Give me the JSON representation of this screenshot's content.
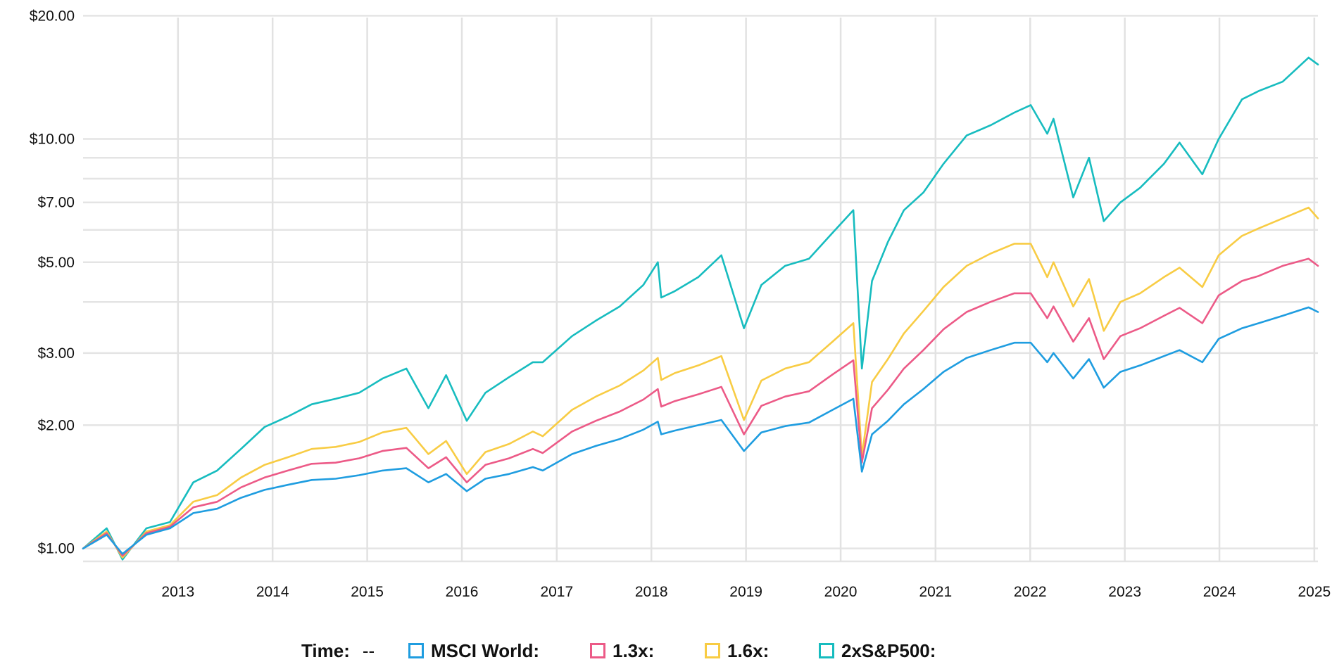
{
  "chart_data": {
    "type": "line",
    "title": "",
    "xlabel": "",
    "ylabel": "",
    "y_scale": "log",
    "ylim": [
      0.93,
      21.0
    ],
    "xlim": [
      "2012-01-01",
      "2025-01-15"
    ],
    "grid": true,
    "y_ticks": [
      {
        "value": 1,
        "label": "$1.00"
      },
      {
        "value": 2,
        "label": "$2.00"
      },
      {
        "value": 3,
        "label": "$3.00"
      },
      {
        "value": 5,
        "label": "$5.00"
      },
      {
        "value": 7,
        "label": "$7.00"
      },
      {
        "value": 10,
        "label": "$10.00"
      },
      {
        "value": 20,
        "label": "$20.00"
      }
    ],
    "y_gridlines": [
      1,
      2,
      3,
      4,
      5,
      6,
      7,
      8,
      9,
      10,
      20
    ],
    "x_ticks": [
      "2013",
      "2014",
      "2015",
      "2016",
      "2017",
      "2018",
      "2019",
      "2020",
      "2021",
      "2022",
      "2023",
      "2024",
      "2025"
    ],
    "x": [
      "2012-01-01",
      "2012-04-01",
      "2012-06-01",
      "2012-09-01",
      "2012-12-01",
      "2013-03-01",
      "2013-06-01",
      "2013-09-01",
      "2013-12-01",
      "2014-03-01",
      "2014-06-01",
      "2014-09-01",
      "2014-12-01",
      "2015-03-01",
      "2015-06-01",
      "2015-08-25",
      "2015-11-01",
      "2016-01-20",
      "2016-04-01",
      "2016-07-01",
      "2016-10-01",
      "2016-11-08",
      "2017-03-01",
      "2017-06-01",
      "2017-09-01",
      "2017-12-01",
      "2018-01-26",
      "2018-02-08",
      "2018-04-01",
      "2018-07-01",
      "2018-09-28",
      "2018-12-24",
      "2019-03-01",
      "2019-06-01",
      "2019-09-01",
      "2019-12-01",
      "2020-02-19",
      "2020-03-23",
      "2020-05-01",
      "2020-07-01",
      "2020-09-01",
      "2020-11-15",
      "2021-02-01",
      "2021-05-01",
      "2021-08-01",
      "2021-11-01",
      "2022-01-03",
      "2022-03-08",
      "2022-04-01",
      "2022-06-16",
      "2022-08-16",
      "2022-10-12",
      "2022-12-15",
      "2023-03-01",
      "2023-06-01",
      "2023-07-31",
      "2023-10-27",
      "2023-12-29",
      "2024-03-28",
      "2024-06-01",
      "2024-09-01",
      "2024-12-10",
      "2025-01-15"
    ],
    "series": [
      {
        "name": "MSCI World:",
        "color": "#1f9de0",
        "values": [
          1.0,
          1.08,
          0.97,
          1.08,
          1.12,
          1.22,
          1.25,
          1.33,
          1.39,
          1.43,
          1.47,
          1.48,
          1.51,
          1.55,
          1.57,
          1.45,
          1.52,
          1.38,
          1.48,
          1.52,
          1.58,
          1.55,
          1.7,
          1.78,
          1.85,
          1.95,
          2.04,
          1.9,
          1.94,
          2.0,
          2.06,
          1.73,
          1.92,
          1.99,
          2.03,
          2.18,
          2.32,
          1.54,
          1.9,
          2.05,
          2.25,
          2.45,
          2.7,
          2.92,
          3.05,
          3.18,
          3.18,
          2.85,
          3.0,
          2.6,
          2.9,
          2.47,
          2.7,
          2.8,
          2.95,
          3.05,
          2.85,
          3.25,
          3.45,
          3.55,
          3.7,
          3.88,
          3.78
        ]
      },
      {
        "name": "1.3x:",
        "color": "#ec5a87",
        "values": [
          1.0,
          1.09,
          0.96,
          1.09,
          1.13,
          1.26,
          1.3,
          1.41,
          1.49,
          1.55,
          1.61,
          1.62,
          1.66,
          1.73,
          1.76,
          1.57,
          1.67,
          1.45,
          1.6,
          1.66,
          1.75,
          1.71,
          1.93,
          2.05,
          2.16,
          2.31,
          2.45,
          2.22,
          2.29,
          2.38,
          2.48,
          1.9,
          2.23,
          2.35,
          2.42,
          2.66,
          2.88,
          1.62,
          2.2,
          2.44,
          2.75,
          3.05,
          3.43,
          3.78,
          4.0,
          4.2,
          4.2,
          3.65,
          3.9,
          3.2,
          3.65,
          2.9,
          3.3,
          3.45,
          3.7,
          3.87,
          3.55,
          4.15,
          4.5,
          4.63,
          4.9,
          5.1,
          4.9
        ]
      },
      {
        "name": "1.6x:",
        "color": "#f8cc44",
        "values": [
          1.0,
          1.1,
          0.95,
          1.1,
          1.14,
          1.3,
          1.35,
          1.49,
          1.6,
          1.67,
          1.75,
          1.77,
          1.82,
          1.92,
          1.97,
          1.7,
          1.83,
          1.52,
          1.72,
          1.8,
          1.93,
          1.88,
          2.18,
          2.35,
          2.5,
          2.72,
          2.92,
          2.58,
          2.68,
          2.8,
          2.95,
          2.06,
          2.57,
          2.75,
          2.85,
          3.2,
          3.55,
          1.68,
          2.55,
          2.9,
          3.35,
          3.8,
          4.35,
          4.9,
          5.25,
          5.55,
          5.55,
          4.6,
          5.0,
          3.9,
          4.55,
          3.4,
          4.0,
          4.2,
          4.6,
          4.85,
          4.35,
          5.2,
          5.8,
          6.05,
          6.4,
          6.8,
          6.4
        ]
      },
      {
        "name": "2xS&P500:",
        "color": "#17bcbf",
        "values": [
          1.0,
          1.12,
          0.94,
          1.12,
          1.16,
          1.45,
          1.55,
          1.75,
          1.98,
          2.1,
          2.25,
          2.32,
          2.4,
          2.6,
          2.75,
          2.2,
          2.65,
          2.05,
          2.4,
          2.62,
          2.85,
          2.85,
          3.3,
          3.6,
          3.9,
          4.4,
          5.0,
          4.1,
          4.25,
          4.6,
          5.2,
          3.45,
          4.4,
          4.9,
          5.1,
          5.9,
          6.7,
          2.75,
          4.5,
          5.6,
          6.7,
          7.4,
          8.7,
          10.2,
          10.8,
          11.6,
          12.1,
          10.3,
          11.2,
          7.2,
          9.0,
          6.3,
          7.0,
          7.6,
          8.7,
          9.8,
          8.2,
          10.0,
          12.5,
          13.1,
          13.8,
          15.8,
          15.2
        ]
      }
    ]
  },
  "legend": {
    "time_label": "Time:",
    "time_value": "--",
    "items": [
      {
        "label": "MSCI World:",
        "color": "#1f9de0"
      },
      {
        "label": "1.3x:",
        "color": "#ec5a87"
      },
      {
        "label": "1.6x:",
        "color": "#f8cc44"
      },
      {
        "label": "2xS&P500:",
        "color": "#17bcbf"
      }
    ]
  }
}
